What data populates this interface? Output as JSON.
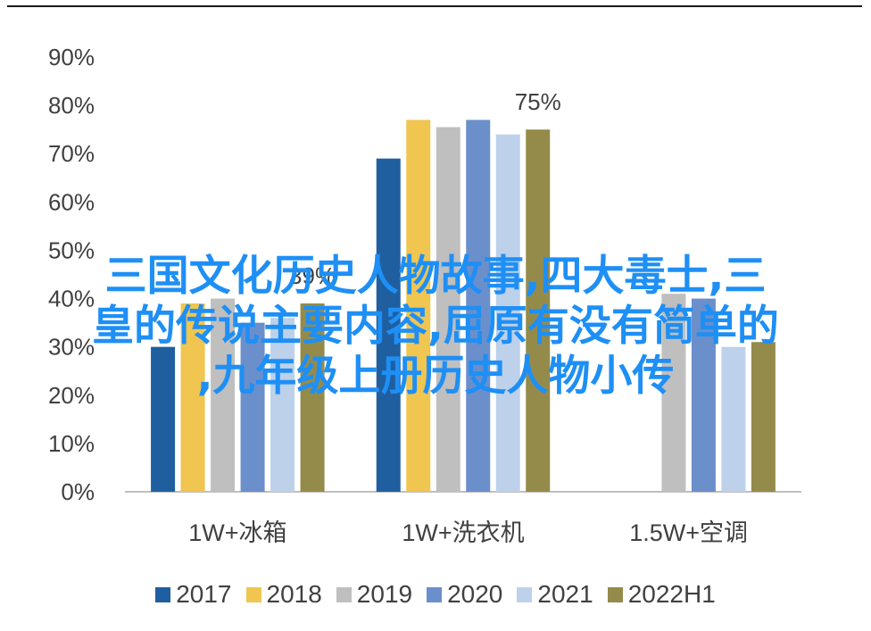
{
  "chart_data": {
    "type": "bar",
    "categories": [
      "1W+冰箱",
      "1W+洗衣机",
      "1.5W+空调"
    ],
    "series": [
      {
        "name": "2017",
        "color": "#1f5fa0",
        "values": [
          30,
          69,
          null
        ]
      },
      {
        "name": "2018",
        "color": "#f0c550",
        "values": [
          39,
          77,
          null
        ]
      },
      {
        "name": "2019",
        "color": "#bfbfbf",
        "values": [
          40,
          75.5,
          41
        ]
      },
      {
        "name": "2020",
        "color": "#6b8fcb",
        "values": [
          35,
          77,
          40
        ]
      },
      {
        "name": "2021",
        "color": "#bdd1ea",
        "values": [
          36,
          74,
          30
        ]
      },
      {
        "name": "2022H1",
        "color": "#948b4b",
        "values": [
          39,
          75,
          31
        ]
      }
    ],
    "data_labels": [
      {
        "category": 0,
        "series": 5,
        "text": "39%"
      },
      {
        "category": 1,
        "series": 5,
        "text": "75%"
      }
    ],
    "yticks": [
      "0%",
      "10%",
      "20%",
      "30%",
      "40%",
      "50%",
      "60%",
      "70%",
      "80%",
      "90%"
    ],
    "ylim": [
      0,
      90
    ],
    "legend_position": "bottom",
    "grid": false
  },
  "overlay_text": [
    "三国文化历史人物故事,四大毒士,三",
    "皇的传说主要内容,屈原有没有简单的",
    ",九年级上册历史人物小传"
  ]
}
